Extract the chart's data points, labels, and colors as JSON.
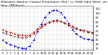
{
  "hours": [
    0,
    1,
    2,
    3,
    4,
    5,
    6,
    7,
    8,
    9,
    10,
    11,
    12,
    13,
    14,
    15,
    16,
    17,
    18,
    19,
    20,
    21,
    22,
    23
  ],
  "temp_red": [
    62,
    58,
    55,
    52,
    50,
    49,
    48,
    50,
    56,
    63,
    70,
    75,
    79,
    82,
    83,
    81,
    77,
    73,
    69,
    65,
    62,
    60,
    58,
    56
  ],
  "thsw_blue": [
    38,
    32,
    28,
    25,
    22,
    20,
    19,
    25,
    38,
    58,
    75,
    90,
    100,
    105,
    106,
    100,
    90,
    76,
    62,
    52,
    46,
    42,
    40,
    38
  ],
  "black_line": [
    55,
    52,
    49,
    47,
    45,
    44,
    43,
    46,
    52,
    59,
    66,
    72,
    77,
    80,
    81,
    80,
    76,
    71,
    67,
    63,
    60,
    58,
    56,
    54
  ],
  "title": "Milwaukee Weather Outdoor Temperature (Red)  vs THSW Index (Blue)  per Hour  (24 Hours)",
  "bg_color": "#ffffff",
  "red_color": "#dd0000",
  "blue_color": "#0000dd",
  "black_color": "#333333",
  "grid_color": "#999999",
  "ylim": [
    15,
    115
  ],
  "ytick_vals": [
    20,
    30,
    40,
    50,
    60,
    70,
    80,
    90,
    100,
    110
  ],
  "ytick_labels": [
    "20",
    "30",
    "40",
    "50",
    "60",
    "70",
    "80",
    "90",
    "100",
    "110"
  ],
  "ylabel_fontsize": 3.0,
  "xlabel_fontsize": 3.0,
  "title_fontsize": 3.0
}
